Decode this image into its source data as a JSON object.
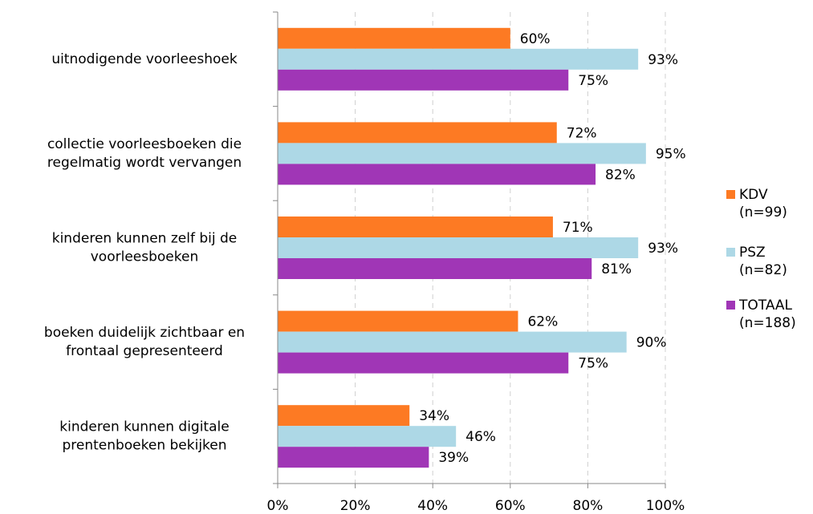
{
  "chart_data": {
    "type": "hbar",
    "categories": [
      [
        "uitnodigende voorleeshoek"
      ],
      [
        "collectie voorleesboeken die",
        "regelmatig wordt vervangen"
      ],
      [
        "kinderen kunnen zelf bij de",
        "voorleesboeken"
      ],
      [
        "boeken duidelijk zichtbaar en",
        "frontaal gepresenteerd"
      ],
      [
        "kinderen kunnen digitale",
        "prentenboeken bekijken"
      ]
    ],
    "series": [
      {
        "name": [
          "KDV",
          "(n=99)"
        ],
        "color": "#fd7a23",
        "values": [
          60,
          72,
          71,
          62,
          34
        ],
        "value_labels": [
          "60%",
          "72%",
          "71%",
          "62%",
          "34%"
        ]
      },
      {
        "name": [
          "PSZ",
          "(n=82)"
        ],
        "color": "#add8e6",
        "values": [
          93,
          95,
          93,
          90,
          46
        ],
        "value_labels": [
          "93%",
          "95%",
          "93%",
          "90%",
          "46%"
        ]
      },
      {
        "name": [
          "TOTAAL",
          "(n=188)"
        ],
        "color": "#a036b6",
        "values": [
          75,
          82,
          81,
          75,
          39
        ],
        "value_labels": [
          "75%",
          "82%",
          "81%",
          "75%",
          "39%"
        ]
      }
    ],
    "xlim": [
      0,
      100
    ],
    "xticks": [
      {
        "value": 0,
        "label": "0%"
      },
      {
        "value": 20,
        "label": "20%"
      },
      {
        "value": 40,
        "label": "40%"
      },
      {
        "value": 60,
        "label": "60%"
      },
      {
        "value": 80,
        "label": "80%"
      },
      {
        "value": 100,
        "label": "100%"
      }
    ],
    "grid": true,
    "legend": "right"
  }
}
